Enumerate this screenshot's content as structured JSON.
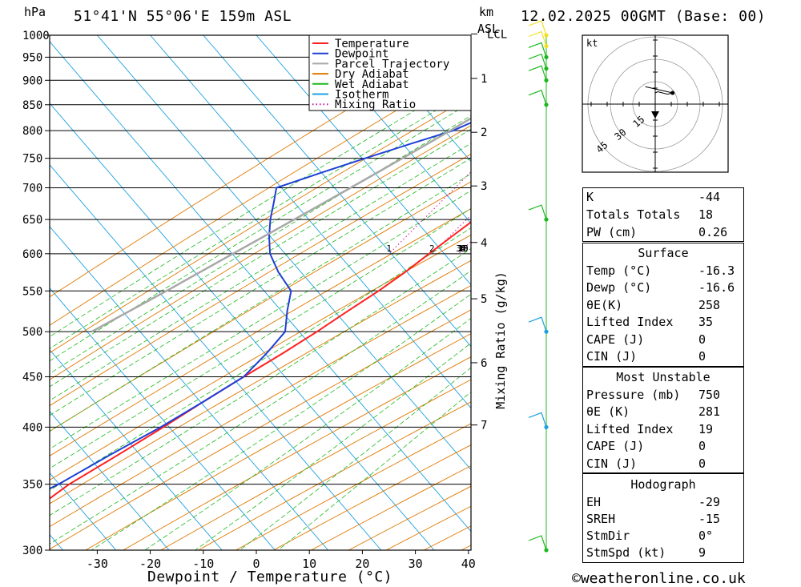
{
  "header": {
    "location": "51°41'N 55°06'E 159m ASL",
    "datetime": "12.02.2025 00GMT (Base: 00)",
    "hpa_label": "hPa",
    "km_label": "km",
    "asl_label": "ASL"
  },
  "footer": {
    "copyright": "©weatheronline.co.uk"
  },
  "chart_data": {
    "type": "line",
    "title": "",
    "xlabel": "Dewpoint / Temperature (°C)",
    "ylabel": "hPa",
    "xlim": [
      -40,
      40
    ],
    "ylim": [
      1000,
      300
    ],
    "pressure_ticks": [
      300,
      350,
      400,
      450,
      500,
      550,
      600,
      650,
      700,
      750,
      800,
      850,
      900,
      950,
      1000
    ],
    "temperature_ticks": [
      -30,
      -20,
      -10,
      0,
      10,
      20,
      30,
      40
    ],
    "height_axis": {
      "label": "km ASL",
      "ticks": [
        {
          "label": "7",
          "pressure": 402
        },
        {
          "label": "6",
          "pressure": 465
        },
        {
          "label": "5",
          "pressure": 540
        },
        {
          "label": "4",
          "pressure": 616
        },
        {
          "label": "3",
          "pressure": 703
        },
        {
          "label": "2",
          "pressure": 797
        },
        {
          "label": "1",
          "pressure": 904
        },
        {
          "label": "LCL",
          "pressure": 1003
        }
      ]
    },
    "mixing_ratio": {
      "label": "Mixing Ratio (g/kg)",
      "labels": [
        "1",
        "2",
        "3",
        "4",
        "6",
        "8",
        "10",
        "15",
        "20",
        "25"
      ]
    },
    "legend": {
      "position": "top-right",
      "entries": [
        {
          "name": "Temperature",
          "color": "#ff2020",
          "style": "solid"
        },
        {
          "name": "Dewpoint",
          "color": "#1e3fd6",
          "style": "solid"
        },
        {
          "name": "Parcel Trajectory",
          "color": "#a8a8a8",
          "style": "solid"
        },
        {
          "name": "Dry Adiabat",
          "color": "#e07800",
          "style": "solid"
        },
        {
          "name": "Wet Adiabat",
          "color": "#1cb81c",
          "style": "solid"
        },
        {
          "name": "Isotherm",
          "color": "#1ca0e0",
          "style": "solid"
        },
        {
          "name": "Mixing Ratio",
          "color": "#d0109a",
          "style": "dotted"
        }
      ]
    },
    "series": [
      {
        "name": "Temperature",
        "color": "#ff2020",
        "points": [
          {
            "p": 1000,
            "t": -16.3
          },
          {
            "p": 975,
            "t": -10
          },
          {
            "p": 950,
            "t": -5
          },
          {
            "p": 925,
            "t": -3
          },
          {
            "p": 900,
            "t": -3
          },
          {
            "p": 875,
            "t": -4.5
          },
          {
            "p": 850,
            "t": -6
          },
          {
            "p": 825,
            "t": -7.5
          },
          {
            "p": 800,
            "t": -9
          },
          {
            "p": 775,
            "t": -9.5
          },
          {
            "p": 750,
            "t": -9.5
          },
          {
            "p": 725,
            "t": -9.5
          },
          {
            "p": 700,
            "t": -10
          },
          {
            "p": 675,
            "t": -11
          },
          {
            "p": 650,
            "t": -12.5
          },
          {
            "p": 625,
            "t": -14
          },
          {
            "p": 600,
            "t": -15.5
          },
          {
            "p": 575,
            "t": -17
          },
          {
            "p": 550,
            "t": -19
          },
          {
            "p": 525,
            "t": -21.5
          },
          {
            "p": 500,
            "t": -24
          },
          {
            "p": 475,
            "t": -27
          },
          {
            "p": 450,
            "t": -30.5
          },
          {
            "p": 425,
            "t": -34
          },
          {
            "p": 400,
            "t": -37.5
          },
          {
            "p": 375,
            "t": -41.5
          },
          {
            "p": 350,
            "t": -46
          },
          {
            "p": 325,
            "t": -49
          },
          {
            "p": 300,
            "t": -52
          }
        ]
      },
      {
        "name": "Dewpoint",
        "color": "#1e3fd6",
        "points": [
          {
            "p": 1000,
            "t": -16.6
          },
          {
            "p": 975,
            "t": -12.5
          },
          {
            "p": 950,
            "t": -11
          },
          {
            "p": 925,
            "t": -11
          },
          {
            "p": 900,
            "t": -15
          },
          {
            "p": 875,
            "t": -19.5
          },
          {
            "p": 850,
            "t": -24
          },
          {
            "p": 825,
            "t": -27.5
          },
          {
            "p": 800,
            "t": -31
          },
          {
            "p": 775,
            "t": -37
          },
          {
            "p": 750,
            "t": -43
          },
          {
            "p": 725,
            "t": -49
          },
          {
            "p": 700,
            "t": -55
          },
          {
            "p": 675,
            "t": -53
          },
          {
            "p": 650,
            "t": -51
          },
          {
            "p": 625,
            "t": -48.5
          },
          {
            "p": 600,
            "t": -45.5
          },
          {
            "p": 575,
            "t": -41
          },
          {
            "p": 550,
            "t": -35.5
          },
          {
            "p": 525,
            "t": -33
          },
          {
            "p": 500,
            "t": -30
          },
          {
            "p": 475,
            "t": -30
          },
          {
            "p": 450,
            "t": -30.5
          },
          {
            "p": 425,
            "t": -34
          },
          {
            "p": 400,
            "t": -38
          },
          {
            "p": 375,
            "t": -43
          },
          {
            "p": 350,
            "t": -48
          },
          {
            "p": 325,
            "t": -55
          },
          {
            "p": 300,
            "t": -63
          }
        ]
      },
      {
        "name": "Parcel Trajectory",
        "color": "#a8a8a8",
        "points": [
          {
            "p": 1000,
            "t": -16.6
          },
          {
            "p": 950,
            "t": -20
          },
          {
            "p": 900,
            "t": -23.5
          },
          {
            "p": 850,
            "t": -27.5
          },
          {
            "p": 800,
            "t": -31.5
          },
          {
            "p": 750,
            "t": -36
          },
          {
            "p": 700,
            "t": -41
          },
          {
            "p": 650,
            "t": -46.5
          },
          {
            "p": 600,
            "t": -52.5
          },
          {
            "p": 550,
            "t": -59
          },
          {
            "p": 500,
            "t": -66.5
          }
        ]
      }
    ],
    "wind_barbs": [
      {
        "p": 1000,
        "color": "#f0e020"
      },
      {
        "p": 975,
        "color": "#f0e020"
      },
      {
        "p": 950,
        "color": "#1cb81c"
      },
      {
        "p": 925,
        "color": "#1cb81c"
      },
      {
        "p": 900,
        "color": "#1cb81c"
      },
      {
        "p": 850,
        "color": "#1cb81c"
      },
      {
        "p": 650,
        "color": "#1cb81c"
      },
      {
        "p": 500,
        "color": "#1ca0e0"
      },
      {
        "p": 400,
        "color": "#1ca0e0"
      },
      {
        "p": 300,
        "color": "#1cb81c"
      }
    ],
    "hodograph": {
      "units": "kt",
      "ring_labels": [
        "15",
        "30",
        "45"
      ],
      "trace": [
        {
          "u": 0,
          "v": -9
        },
        {
          "u": 2,
          "v": -10
        },
        {
          "u": 10,
          "v": -8
        },
        {
          "u": 14,
          "v": -9
        },
        {
          "u": -8,
          "v": -14
        }
      ]
    }
  },
  "indices": {
    "k": {
      "label": "K",
      "value": "-44"
    },
    "totals": {
      "label": "Totals Totals",
      "value": "18"
    },
    "pw": {
      "label": "PW (cm)",
      "value": "0.26"
    },
    "surface": {
      "title": "Surface",
      "temp": {
        "label": "Temp (°C)",
        "value": "-16.3"
      },
      "dewp": {
        "label": "Dewp (°C)",
        "value": "-16.6"
      },
      "theta_e": {
        "label": "θE(K)",
        "value": "258"
      },
      "lifted": {
        "label": "Lifted Index",
        "value": "35"
      },
      "cape": {
        "label": "CAPE (J)",
        "value": "0"
      },
      "cin": {
        "label": "CIN (J)",
        "value": "0"
      }
    },
    "most_unstable": {
      "title": "Most Unstable",
      "pressure": {
        "label": "Pressure (mb)",
        "value": "750"
      },
      "theta_e": {
        "label": "θE (K)",
        "value": "281"
      },
      "lifted": {
        "label": "Lifted Index",
        "value": "19"
      },
      "cape": {
        "label": "CAPE (J)",
        "value": "0"
      },
      "cin": {
        "label": "CIN (J)",
        "value": "0"
      }
    },
    "hodograph": {
      "title": "Hodograph",
      "eh": {
        "label": "EH",
        "value": "-29"
      },
      "sreh": {
        "label": "SREH",
        "value": "-15"
      },
      "stmdir": {
        "label": "StmDir",
        "value": "0°"
      },
      "stmspd": {
        "label": "StmSpd (kt)",
        "value": "9"
      }
    }
  }
}
